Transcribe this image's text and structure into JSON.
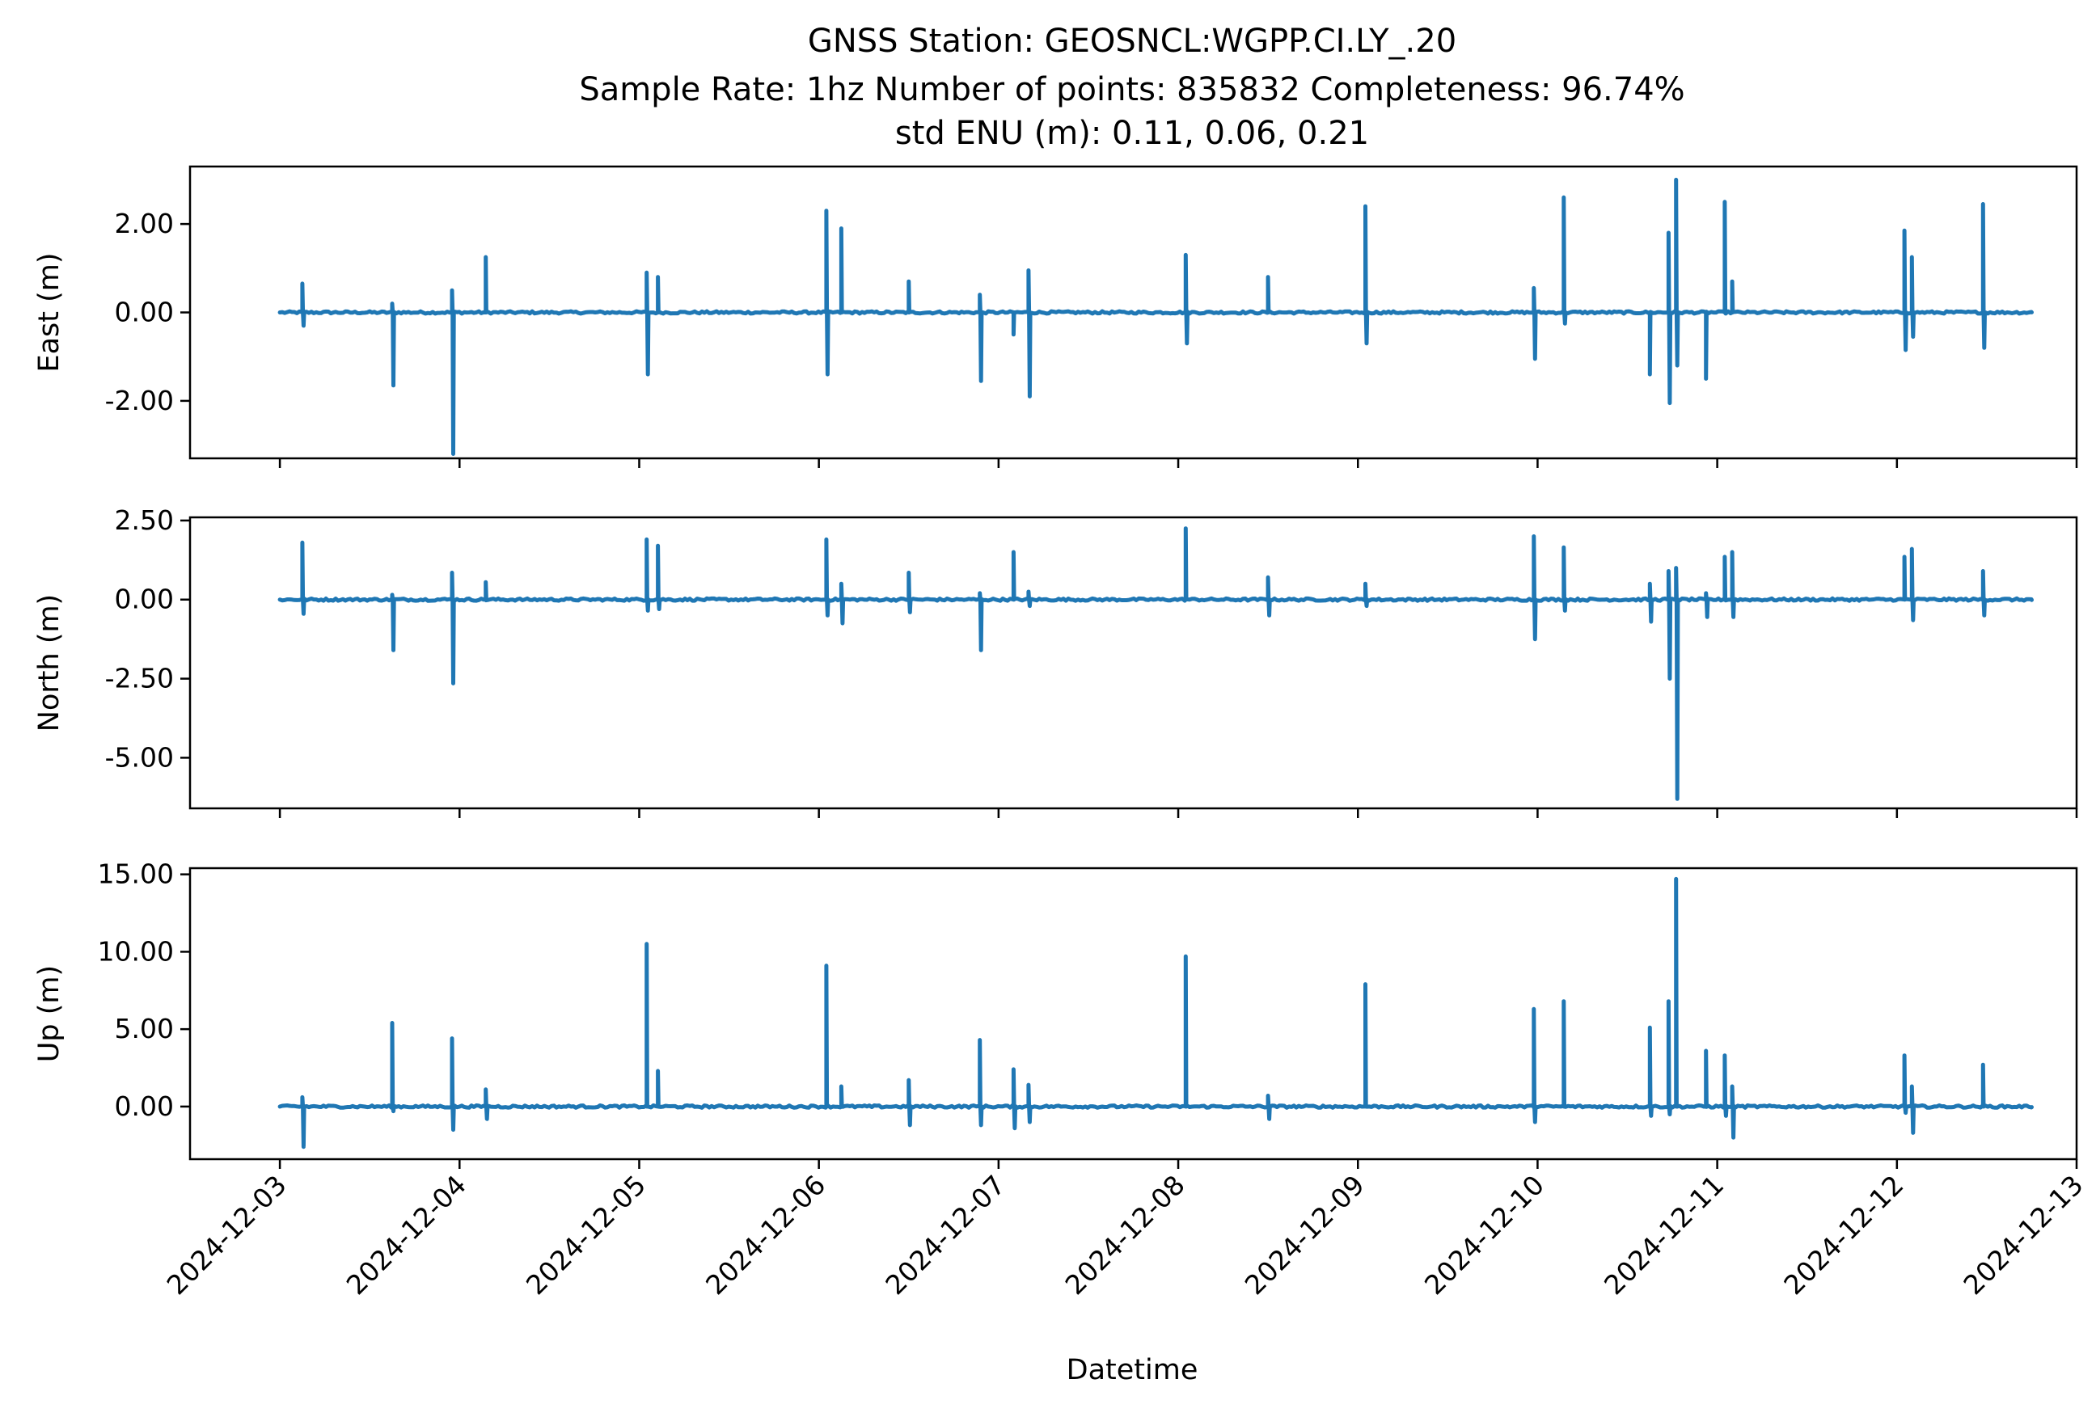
{
  "title": {
    "line1": "GNSS Station: GEOSNCL:WGPP.CI.LY_.20",
    "line2": "Sample Rate: 1hz   Number of points: 835832    Completeness:  96.74%",
    "line3": "std ENU (m):  0.11, 0.06, 0.21"
  },
  "chart_data": {
    "type": "line",
    "xlabel": "Datetime",
    "xlim": [
      "2024-12-02T12:00",
      "2024-12-13T00:00"
    ],
    "x_ticks": [
      "2024-12-03",
      "2024-12-04",
      "2024-12-05",
      "2024-12-06",
      "2024-12-07",
      "2024-12-08",
      "2024-12-09",
      "2024-12-10",
      "2024-12-11",
      "2024-12-12",
      "2024-12-13"
    ],
    "x_start": "2024-12-03T00:00",
    "x_end": "2024-12-12T18:00",
    "series_color": "#1f77b4",
    "grid": false,
    "legend": "none",
    "panels": [
      {
        "name": "east",
        "ylabel": "East (m)",
        "ylim": [
          -3.3,
          3.3
        ],
        "yticks": [
          -2.0,
          0.0,
          2.0
        ],
        "ytick_labels": [
          "-2.00",
          "0.00",
          "2.00"
        ],
        "spikes": [
          {
            "t": "2024-12-03T03:00",
            "v": [
              0.65,
              -0.3
            ]
          },
          {
            "t": "2024-12-03T15:00",
            "v": [
              0.2,
              -1.65
            ]
          },
          {
            "t": "2024-12-03T23:00",
            "v": [
              0.5,
              -3.2
            ]
          },
          {
            "t": "2024-12-04T03:30",
            "v": [
              1.25
            ]
          },
          {
            "t": "2024-12-05T01:00",
            "v": [
              0.9,
              -1.4
            ]
          },
          {
            "t": "2024-12-05T02:30",
            "v": [
              0.8
            ]
          },
          {
            "t": "2024-12-06T01:00",
            "v": [
              2.3,
              -1.4
            ]
          },
          {
            "t": "2024-12-06T03:00",
            "v": [
              1.9
            ]
          },
          {
            "t": "2024-12-06T12:00",
            "v": [
              0.7
            ]
          },
          {
            "t": "2024-12-06T21:30",
            "v": [
              0.4,
              -1.55
            ]
          },
          {
            "t": "2024-12-07T02:00",
            "v": [
              -0.5
            ]
          },
          {
            "t": "2024-12-07T04:00",
            "v": [
              0.95,
              -1.9
            ]
          },
          {
            "t": "2024-12-08T01:00",
            "v": [
              1.3,
              -0.7
            ]
          },
          {
            "t": "2024-12-08T12:00",
            "v": [
              0.8
            ]
          },
          {
            "t": "2024-12-09T01:00",
            "v": [
              2.4,
              -0.7
            ]
          },
          {
            "t": "2024-12-09T23:30",
            "v": [
              0.55,
              -1.05
            ]
          },
          {
            "t": "2024-12-10T03:30",
            "v": [
              2.6,
              -0.25
            ]
          },
          {
            "t": "2024-12-10T15:00",
            "v": [
              -1.4
            ]
          },
          {
            "t": "2024-12-10T17:30",
            "v": [
              1.8,
              -2.05
            ]
          },
          {
            "t": "2024-12-10T18:30",
            "v": [
              3.0,
              -1.2
            ]
          },
          {
            "t": "2024-12-10T22:30",
            "v": [
              -1.5
            ]
          },
          {
            "t": "2024-12-11T01:00",
            "v": [
              2.5
            ]
          },
          {
            "t": "2024-12-11T02:00",
            "v": [
              0.7
            ]
          },
          {
            "t": "2024-12-12T01:00",
            "v": [
              1.85,
              -0.85
            ]
          },
          {
            "t": "2024-12-12T02:00",
            "v": [
              1.25,
              -0.55
            ]
          },
          {
            "t": "2024-12-12T11:30",
            "v": [
              2.45,
              -0.8
            ]
          }
        ]
      },
      {
        "name": "north",
        "ylabel": "North (m)",
        "ylim": [
          -6.6,
          2.6
        ],
        "yticks": [
          -5.0,
          -2.5,
          0.0,
          2.5
        ],
        "ytick_labels": [
          "-5.00",
          "-2.50",
          "0.00",
          "2.50"
        ],
        "spikes": [
          {
            "t": "2024-12-03T03:00",
            "v": [
              1.8,
              -0.45
            ]
          },
          {
            "t": "2024-12-03T15:00",
            "v": [
              0.15,
              -1.6
            ]
          },
          {
            "t": "2024-12-03T23:00",
            "v": [
              0.85,
              -2.65
            ]
          },
          {
            "t": "2024-12-04T03:30",
            "v": [
              0.55
            ]
          },
          {
            "t": "2024-12-05T01:00",
            "v": [
              1.9,
              -0.35
            ]
          },
          {
            "t": "2024-12-05T02:30",
            "v": [
              1.7,
              -0.3
            ]
          },
          {
            "t": "2024-12-06T01:00",
            "v": [
              1.9,
              -0.5
            ]
          },
          {
            "t": "2024-12-06T03:00",
            "v": [
              0.5,
              -0.75
            ]
          },
          {
            "t": "2024-12-06T12:00",
            "v": [
              0.85,
              -0.4
            ]
          },
          {
            "t": "2024-12-06T21:30",
            "v": [
              0.2,
              -1.6
            ]
          },
          {
            "t": "2024-12-07T02:00",
            "v": [
              1.5
            ]
          },
          {
            "t": "2024-12-07T04:00",
            "v": [
              0.25,
              -0.2
            ]
          },
          {
            "t": "2024-12-08T01:00",
            "v": [
              2.25
            ]
          },
          {
            "t": "2024-12-08T12:00",
            "v": [
              0.7,
              -0.5
            ]
          },
          {
            "t": "2024-12-09T01:00",
            "v": [
              0.5,
              -0.2
            ]
          },
          {
            "t": "2024-12-09T23:30",
            "v": [
              2.0,
              -1.25
            ]
          },
          {
            "t": "2024-12-10T03:30",
            "v": [
              1.65,
              -0.35
            ]
          },
          {
            "t": "2024-12-10T15:00",
            "v": [
              0.5,
              -0.7
            ]
          },
          {
            "t": "2024-12-10T17:30",
            "v": [
              0.9,
              -2.5
            ]
          },
          {
            "t": "2024-12-10T18:30",
            "v": [
              1.0,
              -6.3
            ]
          },
          {
            "t": "2024-12-10T22:30",
            "v": [
              0.2,
              -0.55
            ]
          },
          {
            "t": "2024-12-11T01:00",
            "v": [
              1.35
            ]
          },
          {
            "t": "2024-12-11T02:00",
            "v": [
              1.5,
              -0.55
            ]
          },
          {
            "t": "2024-12-12T01:00",
            "v": [
              1.35
            ]
          },
          {
            "t": "2024-12-12T02:00",
            "v": [
              1.6,
              -0.65
            ]
          },
          {
            "t": "2024-12-12T11:30",
            "v": [
              0.9,
              -0.5
            ]
          }
        ]
      },
      {
        "name": "up",
        "ylabel": "Up (m)",
        "ylim": [
          -3.4,
          15.4
        ],
        "yticks": [
          0.0,
          5.0,
          10.0,
          15.0
        ],
        "ytick_labels": [
          "0.00",
          "5.00",
          "10.00",
          "15.00"
        ],
        "spikes": [
          {
            "t": "2024-12-03T03:00",
            "v": [
              0.6,
              -2.6
            ]
          },
          {
            "t": "2024-12-03T15:00",
            "v": [
              5.4,
              -0.3
            ]
          },
          {
            "t": "2024-12-03T23:00",
            "v": [
              4.4,
              -1.5
            ]
          },
          {
            "t": "2024-12-04T03:30",
            "v": [
              1.1,
              -0.8
            ]
          },
          {
            "t": "2024-12-05T01:00",
            "v": [
              10.5
            ]
          },
          {
            "t": "2024-12-05T02:30",
            "v": [
              2.3
            ]
          },
          {
            "t": "2024-12-06T01:00",
            "v": [
              9.1
            ]
          },
          {
            "t": "2024-12-06T03:00",
            "v": [
              1.3
            ]
          },
          {
            "t": "2024-12-06T12:00",
            "v": [
              1.7,
              -1.2
            ]
          },
          {
            "t": "2024-12-06T21:30",
            "v": [
              4.3,
              -1.2
            ]
          },
          {
            "t": "2024-12-07T02:00",
            "v": [
              2.4,
              -1.4
            ]
          },
          {
            "t": "2024-12-07T04:00",
            "v": [
              1.4,
              -1.0
            ]
          },
          {
            "t": "2024-12-08T01:00",
            "v": [
              9.7
            ]
          },
          {
            "t": "2024-12-08T12:00",
            "v": [
              0.7,
              -0.8
            ]
          },
          {
            "t": "2024-12-09T01:00",
            "v": [
              7.9
            ]
          },
          {
            "t": "2024-12-09T23:30",
            "v": [
              6.3,
              -1.0
            ]
          },
          {
            "t": "2024-12-10T03:30",
            "v": [
              6.8
            ]
          },
          {
            "t": "2024-12-10T15:00",
            "v": [
              5.1,
              -0.6
            ]
          },
          {
            "t": "2024-12-10T17:30",
            "v": [
              6.8,
              -0.5
            ]
          },
          {
            "t": "2024-12-10T18:30",
            "v": [
              14.7
            ]
          },
          {
            "t": "2024-12-10T22:30",
            "v": [
              3.6
            ]
          },
          {
            "t": "2024-12-11T01:00",
            "v": [
              3.3,
              -0.6
            ]
          },
          {
            "t": "2024-12-11T02:00",
            "v": [
              1.3,
              -2.0
            ]
          },
          {
            "t": "2024-12-12T01:00",
            "v": [
              3.3,
              -0.4
            ]
          },
          {
            "t": "2024-12-12T02:00",
            "v": [
              1.3,
              -1.7
            ]
          },
          {
            "t": "2024-12-12T11:30",
            "v": [
              2.7
            ]
          }
        ]
      }
    ]
  }
}
